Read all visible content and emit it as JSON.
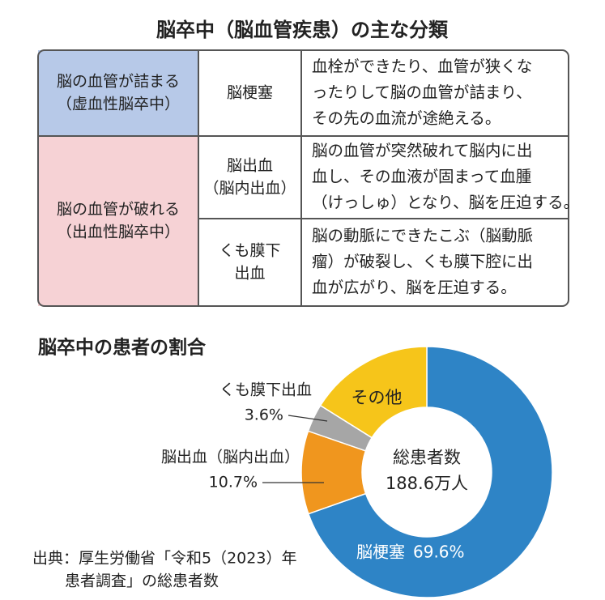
{
  "header": {
    "title": "脳卒中（脳血管疾患）の主な分類"
  },
  "table": {
    "rows": [
      {
        "category": [
          "脳の血管が詰まる",
          "（虚血性脳卒中）"
        ],
        "name": [
          "脳梗塞"
        ],
        "description": [
          "血栓ができたり、血管が狭くな",
          "ったりして脳の血管が詰まり、",
          "その先の血流が途絶える。"
        ]
      },
      {
        "category": [
          "脳の血管が破れる",
          "（出血性脳卒中）"
        ],
        "name": [
          "脳出血",
          "（脳内出血）"
        ],
        "description": [
          "脳の血管が突然破れて脳内に出",
          "血し、その血液が固まって血腫",
          "（けっしゅ）となり、脳を圧迫する。"
        ]
      },
      {
        "name": [
          "くも膜下",
          "出血"
        ],
        "description": [
          "脳の動脈にできたこぶ（脳動脈",
          "瘤）が破裂し、くも膜下腔に出",
          "血が広がり、脳を圧迫する。"
        ]
      }
    ]
  },
  "chart_data": {
    "type": "pie",
    "title": "脳卒中の患者の割合",
    "categories": [
      "脳梗塞",
      "脳出血（脳内出血）",
      "くも膜下出血",
      "その他"
    ],
    "values": [
      69.6,
      10.7,
      3.6,
      16.1
    ],
    "value_labels": [
      "69.6%",
      "10.7%",
      "3.6%",
      null
    ],
    "colors": [
      "#2e84c6",
      "#f0961e",
      "#a6a6a6",
      "#f6c51a"
    ],
    "center_label": [
      "総患者数",
      "188.6万人"
    ]
  },
  "source": [
    "出典：厚生労働省「令和5（2023）年",
    "患者調査」の総患者数"
  ]
}
